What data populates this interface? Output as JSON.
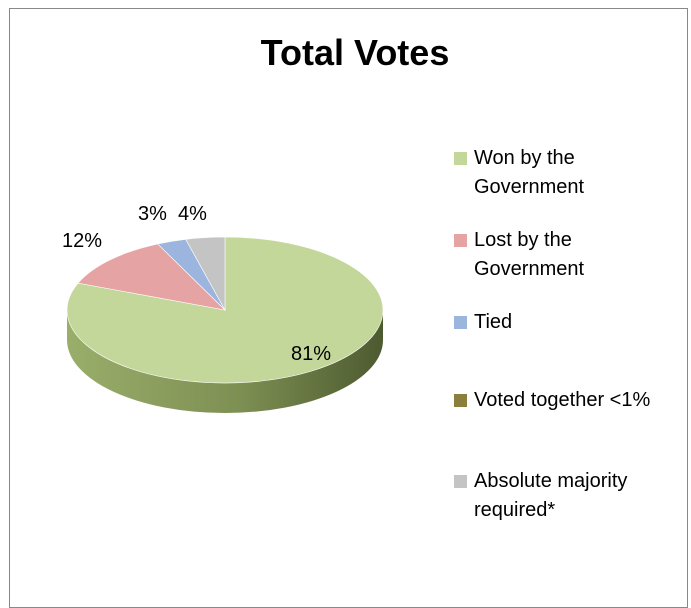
{
  "chart_data": {
    "type": "pie",
    "title": "Total Votes",
    "slices": [
      {
        "name": "Won by the Government",
        "value": 81,
        "label": "81%",
        "color": "#c4d79b"
      },
      {
        "name": "Lost by the Government",
        "value": 12,
        "label": "12%",
        "color": "#e6a3a3"
      },
      {
        "name": "Tied",
        "value": 3,
        "label": "3%",
        "color": "#9bb5de"
      },
      {
        "name": "Voted together <1%",
        "value": 0,
        "label": "",
        "color": "#8c7f3e"
      },
      {
        "name": "Absolute majority required*",
        "value": 4,
        "label": "4%",
        "color": "#c4c4c4"
      }
    ],
    "legend_position": "right",
    "style": "3d-pie"
  }
}
